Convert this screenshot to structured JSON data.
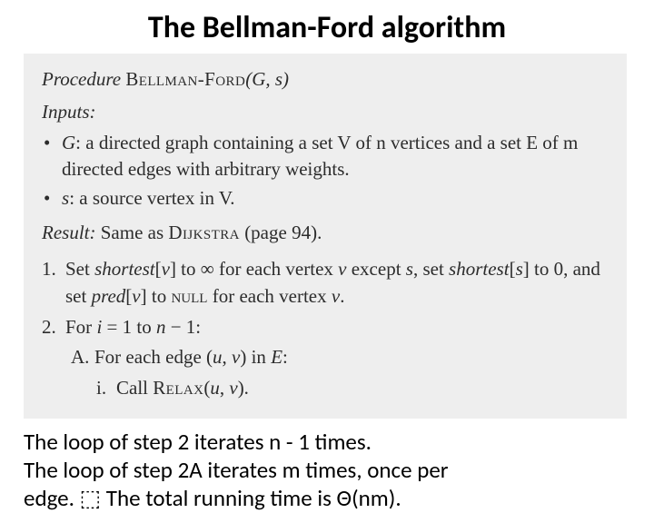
{
  "title": {
    "text": "The Bellman-Ford algorithm",
    "fontsize": 34
  },
  "codebox": {
    "background": "#eeeeee",
    "fontsize": 21,
    "proc_word": "Procedure",
    "proc_name": "Bellman-Ford",
    "proc_args": "(G, s)",
    "inputs_label": "Inputs:",
    "bullets": [
      {
        "lead_var": "G",
        "rest": ": a directed graph containing a set V of n vertices and a set E of m directed edges with arbitrary weights."
      },
      {
        "lead_var": "s",
        "rest": ": a source vertex in V."
      }
    ],
    "result_label": "Result:",
    "result_rest_before": " Same as ",
    "result_smallcaps": "Dijkstra",
    "result_after": " (page 94).",
    "step1_num": "1.",
    "step1_text": "Set shortest[v] to ∞ for each vertex v except s, set shortest[s] to 0, and set pred[v] to NULL for each vertex v.",
    "step2_num": "2.",
    "step2_text": "For i = 1 to n − 1:",
    "step2a_label": "A.",
    "step2a_text": "For each edge (u, v) in E:",
    "step2ai_label": "i.",
    "step2ai_before": "Call ",
    "step2ai_smallcaps": "Relax",
    "step2ai_after": "(u, v)."
  },
  "footer": {
    "fontsize": 25,
    "line1": "The loop of step 2 iterates n - 1 times.",
    "line2a": "The loop of step 2A iterates m times, once per",
    "line2b": "edge. ⬚ The total running time is Θ(nm)."
  }
}
